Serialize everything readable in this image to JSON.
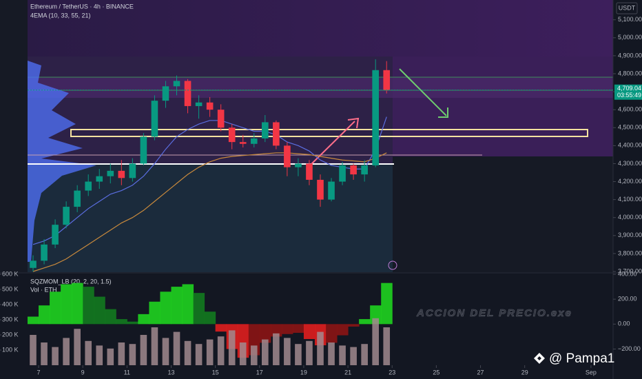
{
  "chart_data": [
    {
      "type": "candlestick",
      "title": "Ethereum / TetherUS · 4h · BINANCE",
      "subtitle": "4EMA (10, 33, 55, 21)",
      "currency": "USDT",
      "x": [
        6.75,
        7.25,
        7.75,
        8.25,
        8.75,
        9.25,
        9.75,
        10.25,
        10.75,
        11.25,
        11.75,
        12.25,
        12.75,
        13.25,
        13.75,
        14.25,
        14.75,
        15.25,
        15.75,
        16.25,
        16.75,
        17.25,
        17.75,
        18.25,
        18.75,
        19.25,
        19.75,
        20.25,
        20.75,
        21.25,
        21.75,
        22.25,
        22.75
      ],
      "open": [
        3720,
        3760,
        3850,
        3960,
        4060,
        4150,
        4200,
        4230,
        4260,
        4220,
        4300,
        4450,
        4650,
        4730,
        4760,
        4620,
        4640,
        4600,
        4500,
        4420,
        4410,
        4440,
        4530,
        4400,
        4280,
        4300,
        4210,
        4100,
        4200,
        4290,
        4240,
        4290,
        4820
      ],
      "high": [
        3790,
        3880,
        3990,
        4090,
        4180,
        4240,
        4270,
        4300,
        4320,
        4330,
        4470,
        4680,
        4760,
        4790,
        4770,
        4680,
        4670,
        4630,
        4520,
        4460,
        4470,
        4570,
        4540,
        4420,
        4330,
        4320,
        4240,
        4220,
        4310,
        4300,
        4320,
        4880,
        4870
      ],
      "low": [
        3700,
        3740,
        3830,
        3940,
        4030,
        4120,
        4160,
        4190,
        4180,
        4200,
        4290,
        4430,
        4610,
        4680,
        4580,
        4550,
        4560,
        4480,
        4380,
        4390,
        4390,
        4420,
        4380,
        4230,
        4230,
        4180,
        4060,
        4090,
        4180,
        4210,
        4200,
        4280,
        4690
      ],
      "close": [
        3760,
        3850,
        3960,
        4060,
        4150,
        4200,
        4230,
        4260,
        4220,
        4300,
        4450,
        4650,
        4730,
        4760,
        4620,
        4640,
        4600,
        4500,
        4420,
        4410,
        4440,
        4530,
        4400,
        4280,
        4300,
        4210,
        4100,
        4200,
        4290,
        4240,
        4290,
        4820,
        4709.04
      ],
      "up_color": "#089981",
      "down_color": "#f23645",
      "ema": [
        {
          "color": "#5b6ee1",
          "values": [
            3850,
            3870,
            3900,
            3950,
            4000,
            4050,
            4090,
            4130,
            4150,
            4180,
            4230,
            4300,
            4380,
            4450,
            4490,
            4520,
            4540,
            4540,
            4520,
            4500,
            4480,
            4480,
            4460,
            4420,
            4400,
            4370,
            4320,
            4290,
            4280,
            4270,
            4270,
            4380,
            4560
          ]
        },
        {
          "color": "#c98a3c",
          "values": [
            3700,
            3720,
            3740,
            3770,
            3810,
            3850,
            3890,
            3930,
            3970,
            4000,
            4040,
            4090,
            4140,
            4190,
            4240,
            4280,
            4310,
            4330,
            4340,
            4345,
            4350,
            4355,
            4360,
            4360,
            4355,
            4350,
            4340,
            4330,
            4320,
            4315,
            4310,
            4330,
            4360
          ]
        }
      ],
      "xlim": [
        6.5,
        33
      ],
      "xticks": [
        7,
        9,
        11,
        13,
        15,
        17,
        19,
        21,
        23,
        25,
        27,
        29,
        {
          "value": 32,
          "label": "Sep"
        }
      ],
      "ylim": [
        3700,
        5210
      ],
      "yticks": [
        {
          "value": 3700,
          "label": "3,700.00"
        },
        {
          "value": 3800,
          "label": "3,800.00"
        },
        {
          "value": 3900,
          "label": "3,900.00"
        },
        {
          "value": 4000,
          "label": "4,000.00"
        },
        {
          "value": 4100,
          "label": "4,100.00"
        },
        {
          "value": 4200,
          "label": "4,200.00"
        },
        {
          "value": 4300,
          "label": "4,300.00"
        },
        {
          "value": 4400,
          "label": "4,400.00"
        },
        {
          "value": 4500,
          "label": "4,500.00"
        },
        {
          "value": 4600,
          "label": "4,600.00"
        },
        {
          "value": 4700,
          "label": "4,700.00"
        },
        {
          "value": 4800,
          "label": "4,800.00"
        },
        {
          "value": 4900,
          "label": "4,900.00"
        },
        {
          "value": 5000,
          "label": "5,000.00"
        },
        {
          "value": 5100,
          "label": "5,100.00"
        }
      ],
      "last_price": {
        "value": 4709.04,
        "label": "4,709.04"
      },
      "countdown": "03:55:49"
    },
    {
      "type": "bar",
      "title": "SQZMOM_LB (20, 2, 20, 1.5)",
      "subtitle": "Vol · ETH",
      "x": [
        6.75,
        7.25,
        7.75,
        8.25,
        8.75,
        9.25,
        9.75,
        10.25,
        10.75,
        11.25,
        11.75,
        12.25,
        12.75,
        13.25,
        13.75,
        14.25,
        14.75,
        15.25,
        15.75,
        16.25,
        16.75,
        17.25,
        17.75,
        18.25,
        18.75,
        19.25,
        19.75,
        20.25,
        20.75,
        21.25,
        21.75,
        22.25,
        22.75
      ],
      "values": [
        200000,
        150000,
        120000,
        180000,
        240000,
        160000,
        130000,
        110000,
        150000,
        140000,
        200000,
        250000,
        180000,
        220000,
        160000,
        140000,
        170000,
        190000,
        230000,
        150000,
        130000,
        170000,
        210000,
        180000,
        140000,
        160000,
        220000,
        150000,
        130000,
        120000,
        140000,
        310000,
        250000
      ],
      "color": "#a1898e",
      "ylim": [
        0,
        600000
      ],
      "yticks": [
        {
          "value": 100000,
          "label": "100 K"
        },
        {
          "value": 200000,
          "label": "200 K"
        },
        {
          "value": 300000,
          "label": "300 K"
        },
        {
          "value": 400000,
          "label": "400 K"
        },
        {
          "value": 500000,
          "label": "500 K"
        },
        {
          "value": 600000,
          "label": "600 K"
        }
      ],
      "momentum": {
        "axis": "y2",
        "values": [
          60,
          150,
          260,
          320,
          330,
          300,
          220,
          120,
          40,
          20,
          80,
          180,
          260,
          300,
          320,
          250,
          100,
          -60,
          -200,
          -270,
          -250,
          -150,
          -100,
          -80,
          -70,
          -120,
          -170,
          -150,
          -90,
          -20,
          40,
          150,
          330
        ],
        "colors": [
          "#1fd31f",
          "#137a1f",
          "#e01e1e",
          "#8c1414"
        ]
      },
      "y2lim": [
        -330,
        400
      ],
      "y2ticks": [
        {
          "value": 400,
          "label": "400.00"
        },
        {
          "value": 200,
          "label": "200.00"
        },
        {
          "value": 0,
          "label": "0.00"
        },
        {
          "value": -200,
          "label": "−200.00"
        }
      ]
    }
  ],
  "watermark": "ACCION DEL PRECIO.exe",
  "author": "@ Pampa1"
}
